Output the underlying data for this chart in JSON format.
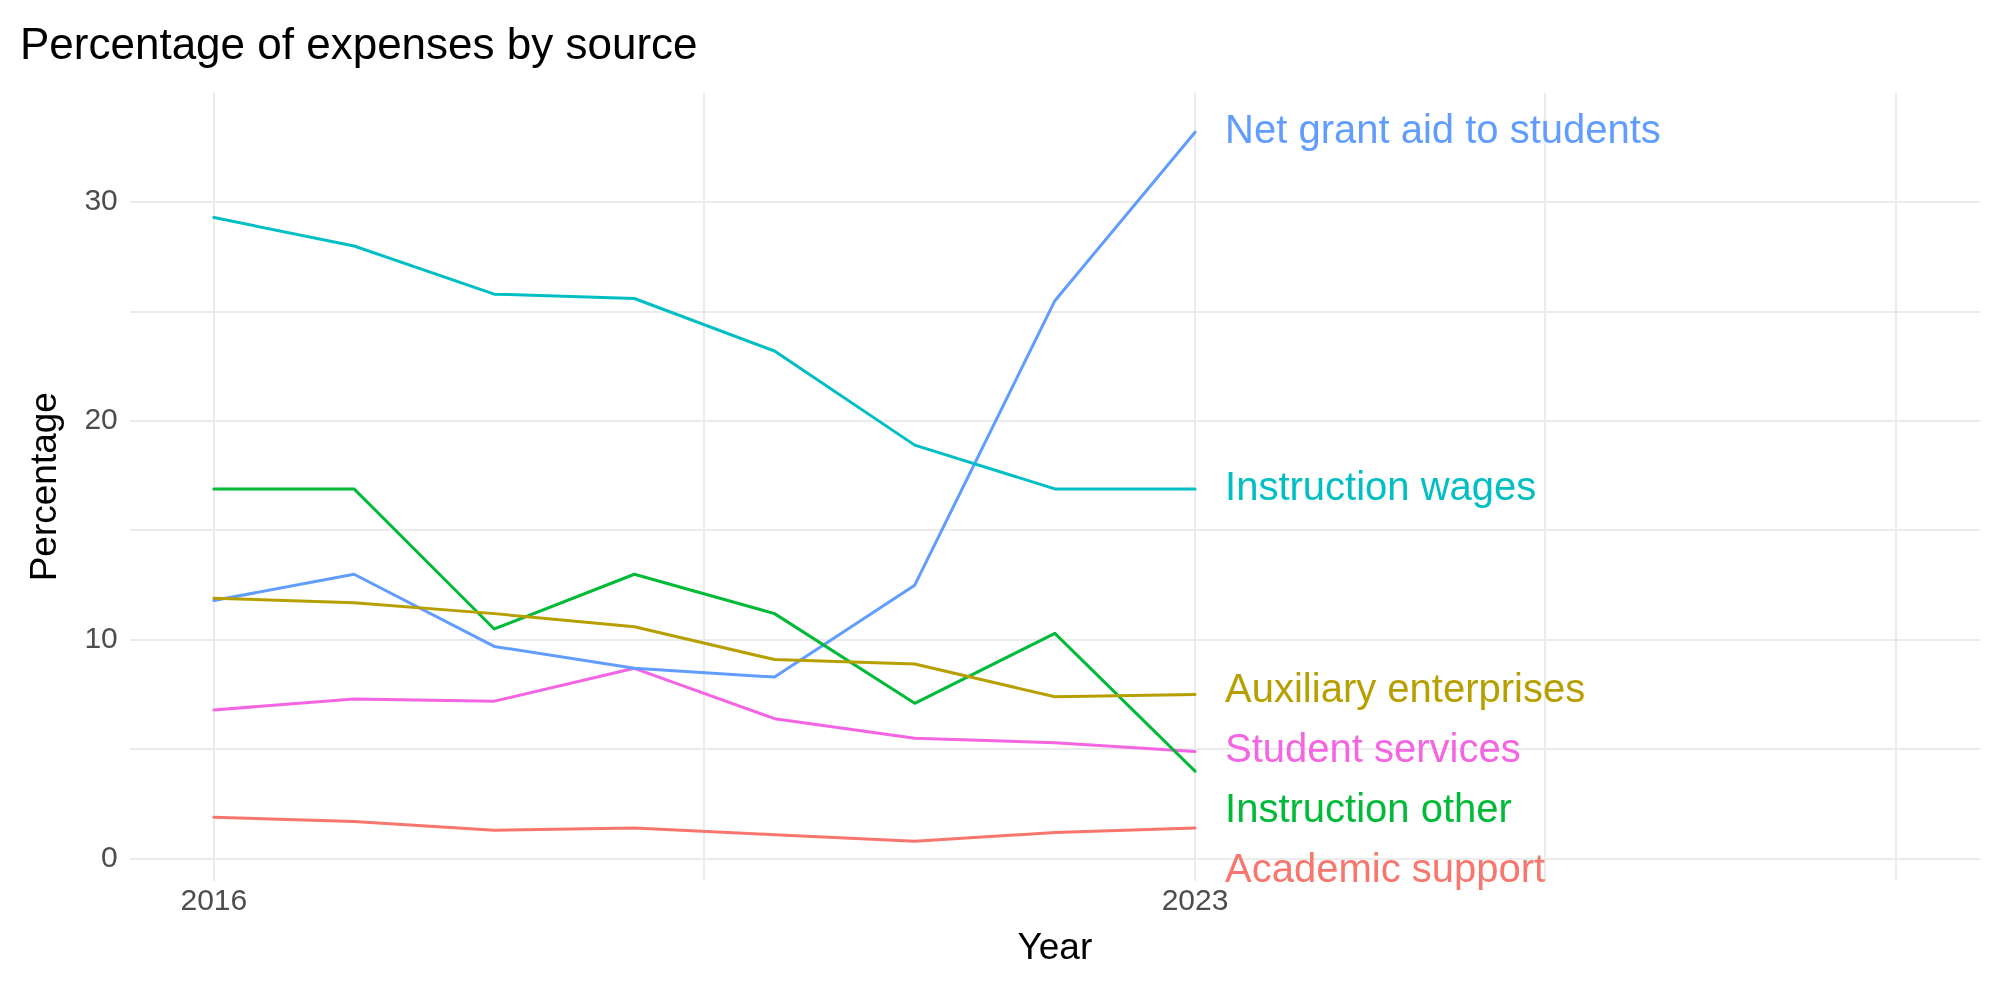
{
  "chart_data": {
    "type": "line",
    "title": "Percentage of expenses by source",
    "xlabel": "Year",
    "ylabel": "Percentage",
    "x": [
      2016,
      2017,
      2018,
      2019,
      2020,
      2021,
      2022,
      2023
    ],
    "xlim": [
      2015.4,
      2028.6
    ],
    "xticks": [
      2016,
      {
        "value": 2019.5,
        "label": null
      },
      2023,
      {
        "value": 2025.5,
        "label": null
      },
      {
        "value": 2028,
        "label": null
      }
    ],
    "ylim": [
      -1,
      35
    ],
    "yticks": [
      0,
      {
        "value": 5,
        "label": null
      },
      10,
      {
        "value": 15,
        "label": null
      },
      20,
      {
        "value": 25,
        "label": null
      },
      30
    ],
    "grid": true,
    "legend": false,
    "marker": "none",
    "line_style": "solid",
    "series": [
      {
        "name": "Academic support",
        "color": "#f8766d",
        "values": [
          1.9,
          1.7,
          1.3,
          1.4,
          1.1,
          0.8,
          1.2,
          1.4
        ]
      },
      {
        "name": "Auxiliary enterprises",
        "color": "#b79f00",
        "values": [
          11.9,
          11.7,
          11.2,
          10.6,
          9.1,
          8.9,
          7.4,
          7.5
        ]
      },
      {
        "name": "Instruction other",
        "color": "#00ba38",
        "values": [
          16.9,
          16.9,
          10.5,
          13.0,
          11.2,
          7.1,
          10.3,
          4.0
        ]
      },
      {
        "name": "Instruction wages",
        "color": "#00bfc4",
        "values": [
          29.3,
          28.0,
          25.8,
          25.6,
          23.2,
          18.9,
          16.9,
          16.9
        ]
      },
      {
        "name": "Net grant aid to students",
        "color": "#619cff",
        "values": [
          11.8,
          13.0,
          9.7,
          8.7,
          8.3,
          12.5,
          25.5,
          33.2
        ]
      },
      {
        "name": "Student services",
        "color": "#f564e3",
        "values": [
          6.8,
          7.3,
          7.2,
          8.7,
          6.4,
          5.5,
          5.3,
          4.9
        ]
      }
    ]
  }
}
